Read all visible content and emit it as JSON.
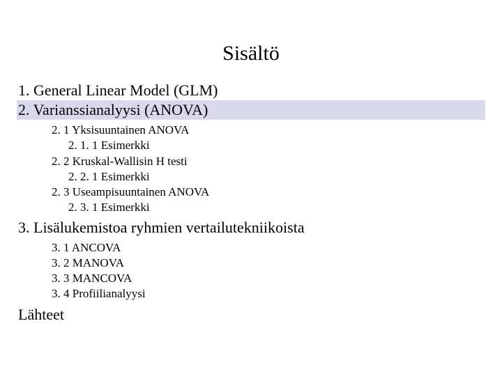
{
  "title": "Sisältö",
  "colors": {
    "highlight_bg": "#dad9ec",
    "text": "#000000",
    "background": "#ffffff"
  },
  "typography": {
    "title_fontsize": 30,
    "lvl1_fontsize": 22,
    "sub_fontsize": 17,
    "font_family": "Times New Roman"
  },
  "items": {
    "s1": "1.  General Linear Model (GLM)",
    "s2": "2.  Varianssianalyysi (ANOVA)",
    "s2_1": "2. 1 Yksisuuntainen ANOVA",
    "s2_1_1": "2. 1. 1 Esimerkki",
    "s2_2": "2. 2 Kruskal-Wallisin H testi",
    "s2_2_1": "2. 2. 1 Esimerkki",
    "s2_3": "2. 3 Useampisuuntainen ANOVA",
    "s2_3_1": "2. 3. 1 Esimerkki",
    "s3": "3. Lisälukemistoa ryhmien vertailutekniikoista",
    "s3_1": "3. 1 ANCOVA",
    "s3_2": "3. 2 MANOVA",
    "s3_3": "3. 3 MANCOVA",
    "s3_4": "3. 4 Profiilianalyysi",
    "refs": "Lähteet"
  }
}
